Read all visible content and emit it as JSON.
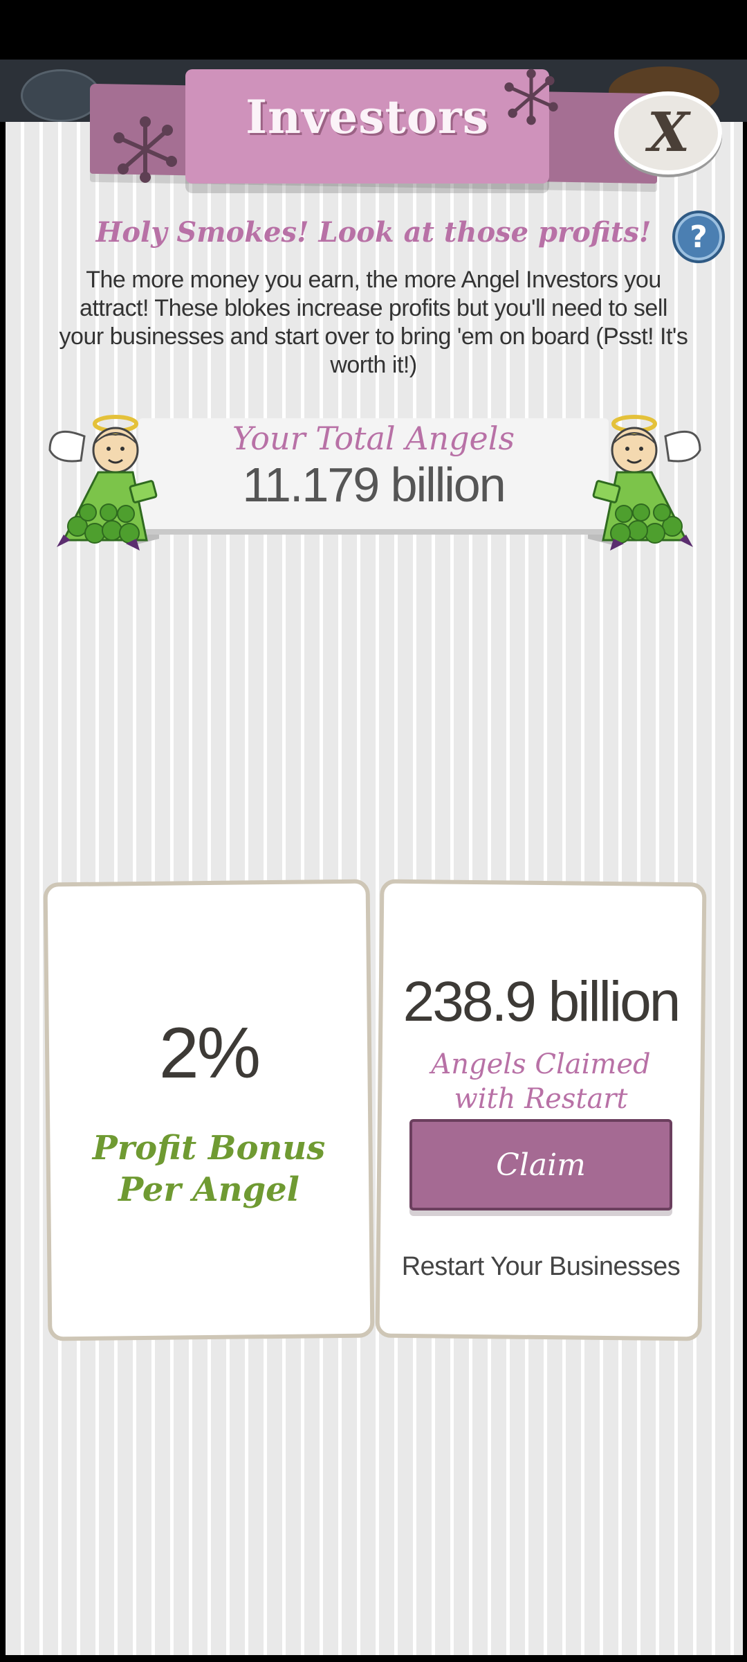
{
  "header": {
    "title": "Investors",
    "close_label": "X",
    "help_label": "?"
  },
  "intro": {
    "headline": "Holy Smokes! Look at those profits!",
    "description": "The more money you earn, the more Angel Investors you attract! These blokes increase profits but you'll need to sell your businesses and start over to bring 'em on board (Psst! It's worth it!)"
  },
  "total_angels": {
    "label": "Your Total Angels",
    "value": "11.179 billion"
  },
  "bonus_card": {
    "value": "2%",
    "label_line1": "Profit Bonus",
    "label_line2": "Per Angel"
  },
  "claim_card": {
    "value": "238.9 billion",
    "label_line1": "Angels Claimed",
    "label_line2": "with Restart",
    "button_label": "Claim",
    "footer_text": "Restart Your Businesses"
  },
  "colors": {
    "banner": "#cf92bb",
    "accent_purple": "#b871a6",
    "claim_button": "#a56a93",
    "bonus_green": "#6f9a32",
    "help_blue": "#4b7fb2"
  },
  "icons": [
    "asterisk-star-icon",
    "close-icon",
    "help-icon",
    "angel-investor-icon"
  ]
}
